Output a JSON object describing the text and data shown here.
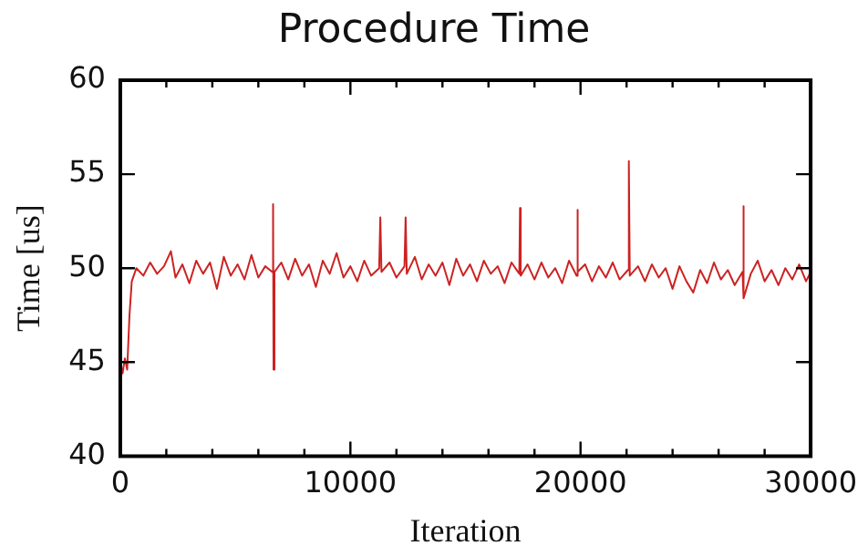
{
  "chart_data": {
    "type": "line",
    "title": "Procedure Time",
    "xlabel": "Iteration",
    "ylabel": "Time [us]",
    "xlim": [
      0,
      30000
    ],
    "ylim": [
      40,
      60
    ],
    "xticks": [
      0,
      {
        "value": 2000,
        "label": null
      },
      {
        "value": 4000,
        "label": null
      },
      {
        "value": 6000,
        "label": null
      },
      {
        "value": 8000,
        "label": null
      },
      10000,
      {
        "value": 12000,
        "label": null
      },
      {
        "value": 14000,
        "label": null
      },
      {
        "value": 16000,
        "label": null
      },
      {
        "value": 18000,
        "label": null
      },
      20000,
      {
        "value": 22000,
        "label": null
      },
      {
        "value": 24000,
        "label": null
      },
      {
        "value": 26000,
        "label": null
      },
      {
        "value": 28000,
        "label": null
      },
      30000
    ],
    "yticks": [
      40,
      45,
      50,
      55,
      60
    ],
    "grid": false,
    "legend": false,
    "marker": "none",
    "line_style": "solid",
    "series": [
      {
        "color": "#cc2222",
        "x": [
          0,
          100,
          200,
          300,
          400,
          500,
          700,
          1000,
          1300,
          1600,
          1900,
          2200,
          2400,
          2700,
          3000,
          3300,
          3600,
          3900,
          4200,
          4500,
          4800,
          5100,
          5400,
          5700,
          6000,
          6300,
          6600,
          6640,
          6660,
          6700,
          7000,
          7300,
          7600,
          7900,
          8200,
          8500,
          8800,
          9100,
          9400,
          9700,
          10000,
          10300,
          10600,
          10900,
          11250,
          11300,
          11350,
          11700,
          12000,
          12350,
          12400,
          12450,
          12800,
          13100,
          13400,
          13700,
          14000,
          14300,
          14600,
          14900,
          15200,
          15500,
          15800,
          16100,
          16400,
          16700,
          17000,
          17340,
          17370,
          17400,
          17700,
          18000,
          18300,
          18600,
          18900,
          19200,
          19500,
          19830,
          19860,
          19890,
          20200,
          20500,
          20800,
          21100,
          21400,
          21700,
          22060,
          22100,
          22140,
          22500,
          22800,
          23100,
          23400,
          23700,
          24000,
          24300,
          24600,
          24900,
          25200,
          25500,
          25800,
          26100,
          26400,
          26700,
          27040,
          27070,
          27100,
          27400,
          27700,
          28000,
          28300,
          28600,
          28900,
          29200,
          29500,
          29800,
          30000
        ],
        "values": [
          45.0,
          44.4,
          45.2,
          44.6,
          47.5,
          49.3,
          50.0,
          49.6,
          50.3,
          49.7,
          50.1,
          50.9,
          49.5,
          50.2,
          49.2,
          50.4,
          49.7,
          50.3,
          48.9,
          50.6,
          49.6,
          50.2,
          49.4,
          50.7,
          49.5,
          50.1,
          49.8,
          53.4,
          44.6,
          49.8,
          50.3,
          49.4,
          50.5,
          49.6,
          50.2,
          49.0,
          50.4,
          49.7,
          50.8,
          49.5,
          50.1,
          49.3,
          50.4,
          49.6,
          50.0,
          52.7,
          49.8,
          50.3,
          49.5,
          50.1,
          52.7,
          49.7,
          50.6,
          49.4,
          50.2,
          49.6,
          50.3,
          49.1,
          50.5,
          49.6,
          50.2,
          49.3,
          50.4,
          49.7,
          50.1,
          49.2,
          50.3,
          49.7,
          53.2,
          49.6,
          50.2,
          49.4,
          50.3,
          49.5,
          50.0,
          49.2,
          50.4,
          49.6,
          53.1,
          49.8,
          50.2,
          49.3,
          50.1,
          49.5,
          50.3,
          49.4,
          49.9,
          55.7,
          49.6,
          50.1,
          49.3,
          50.2,
          49.5,
          50.0,
          48.9,
          50.1,
          49.3,
          48.7,
          49.9,
          49.2,
          50.3,
          49.4,
          49.9,
          49.1,
          49.8,
          53.3,
          48.4,
          49.7,
          50.4,
          49.3,
          49.9,
          49.1,
          50.0,
          49.4,
          50.2,
          49.3,
          49.8
        ]
      }
    ]
  }
}
